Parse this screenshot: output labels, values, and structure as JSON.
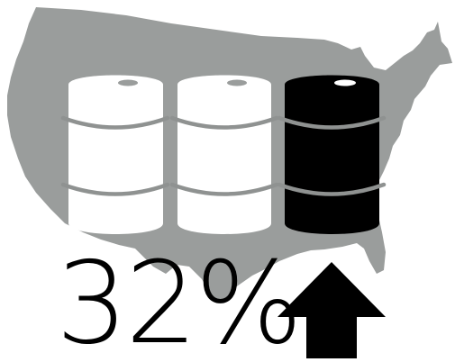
{
  "infographic": {
    "stat_value": "32%",
    "trend": "up-arrow-icon",
    "barrels_total": 3,
    "barrels_highlighted": 1,
    "colors": {
      "background": "#ffffff",
      "map": "#9a9d9c",
      "barrel_plain": "#ffffff",
      "barrel_highlight": "#000000",
      "barrel_ring": "#8f9291",
      "arrow": "#000000",
      "text": "#000000"
    }
  }
}
